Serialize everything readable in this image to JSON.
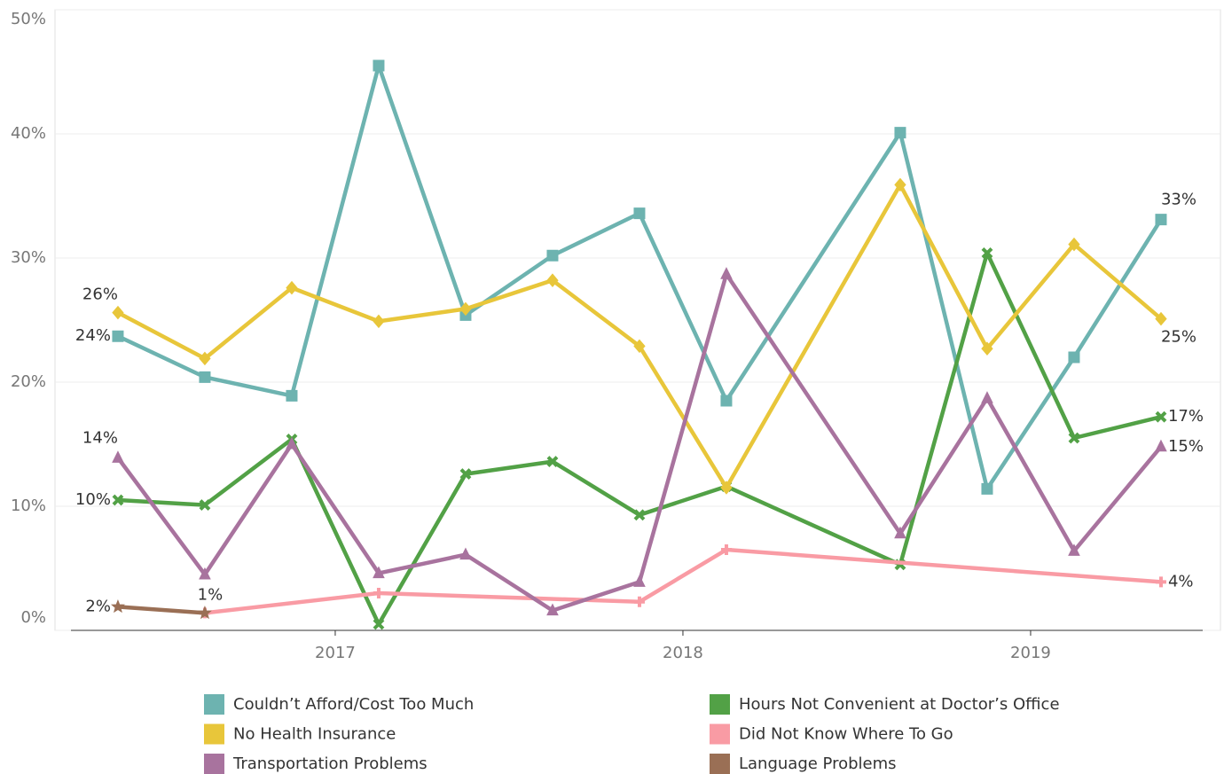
{
  "chart_data": {
    "type": "line",
    "x": [
      2016.375,
      2016.625,
      2016.875,
      2017.125,
      2017.375,
      2017.625,
      2017.875,
      2018.125,
      2018.625,
      2018.875,
      2019.125,
      2019.375
    ],
    "xlim": [
      2016.194,
      2019.546
    ],
    "xticks": [
      2017,
      2018,
      2019
    ],
    "ylim": [
      0,
      50
    ],
    "yticks": [
      {
        "value": 0,
        "label": "0%"
      },
      {
        "value": 10,
        "label": "10%"
      },
      {
        "value": 20,
        "label": "20%"
      },
      {
        "value": 30,
        "label": "30%"
      },
      {
        "value": 40,
        "label": "40%"
      },
      {
        "value": 50,
        "label": "50%"
      }
    ],
    "grid": true,
    "series": [
      {
        "name": "Couldn’t Afford/Cost Too Much",
        "color": "#6db3b0",
        "marker": "square",
        "values": [
          23.7,
          20.4,
          18.9,
          45.5,
          25.4,
          30.2,
          33.6,
          18.5,
          40.1,
          11.4,
          22.0,
          33.1
        ],
        "value_labels": [
          "24%",
          null,
          null,
          null,
          null,
          null,
          null,
          null,
          null,
          null,
          null,
          "33%"
        ]
      },
      {
        "name": "Hours Not Convenient at Doctor’s Office",
        "color": "#52a146",
        "marker": "x",
        "values": [
          10.5,
          10.1,
          15.4,
          0.5,
          12.6,
          13.6,
          9.3,
          11.6,
          5.3,
          30.4,
          15.5,
          17.2
        ],
        "value_labels": [
          "10%",
          null,
          null,
          null,
          null,
          null,
          null,
          null,
          null,
          null,
          null,
          "17%"
        ]
      },
      {
        "name": "No Health Insurance",
        "color": "#e8c63a",
        "marker": "diamond",
        "values": [
          25.6,
          21.9,
          27.6,
          24.9,
          25.9,
          28.2,
          22.9,
          11.5,
          35.9,
          22.7,
          31.1,
          25.1
        ],
        "value_labels": [
          "26%",
          null,
          null,
          null,
          null,
          null,
          null,
          null,
          null,
          null,
          null,
          "25%"
        ]
      },
      {
        "name": "Did Not Know Where To Go",
        "color": "#f99ba4",
        "marker": "plus",
        "x": [
          2016.625,
          2017.125,
          2017.875,
          2018.125,
          2019.375
        ],
        "values": [
          1.4,
          3.0,
          2.3,
          6.5,
          3.9
        ],
        "value_labels": [
          "1%",
          null,
          null,
          null,
          "4%"
        ]
      },
      {
        "name": "Transportation Problems",
        "color": "#a8739e",
        "marker": "triangle",
        "values": [
          13.9,
          4.5,
          15.0,
          4.6,
          6.1,
          1.6,
          3.9,
          28.7,
          7.8,
          18.7,
          6.4,
          14.8
        ],
        "value_labels": [
          "14%",
          null,
          null,
          null,
          null,
          null,
          null,
          null,
          null,
          null,
          null,
          "15%"
        ]
      },
      {
        "name": "Language Problems",
        "color": "#9a6f55",
        "marker": "star",
        "x": [
          2016.375,
          2016.625
        ],
        "values": [
          1.9,
          1.4
        ],
        "value_labels": [
          "2%",
          null
        ]
      }
    ]
  }
}
